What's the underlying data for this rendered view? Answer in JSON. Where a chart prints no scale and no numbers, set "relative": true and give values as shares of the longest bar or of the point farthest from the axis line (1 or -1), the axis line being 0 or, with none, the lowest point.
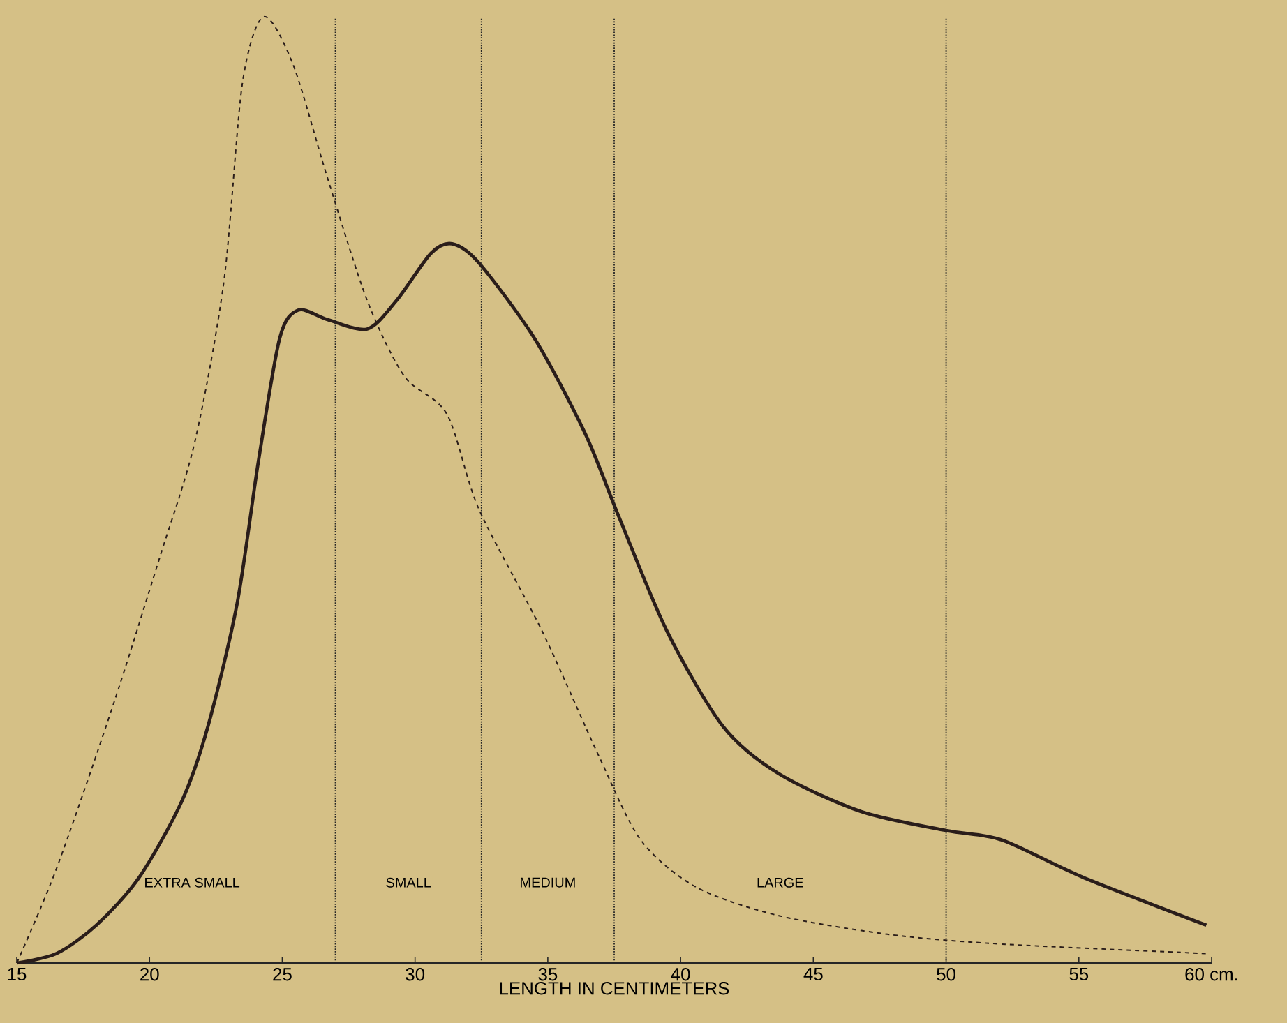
{
  "chart_data": {
    "type": "line",
    "relative": true,
    "xlabel": "LENGTH IN CENTIMETERS",
    "xlim": [
      15,
      60
    ],
    "xticks": [
      15,
      20,
      25,
      30,
      35,
      40,
      45,
      50,
      55,
      {
        "value": 60,
        "label": "60 cm."
      }
    ],
    "series": [
      {
        "color": "#2a1d1a",
        "line_style": "dashed",
        "x": [
          15,
          16.5,
          18.6,
          20.4,
          21.7,
          22.8,
          23.5,
          24.3,
          25.4,
          26.7,
          28.2,
          29.6,
          31.2,
          32.4,
          34.8,
          36.9,
          38.5,
          40.6,
          43.7,
          47.9,
          52.1,
          59.8
        ],
        "values": [
          0,
          0.1,
          0.27,
          0.43,
          0.55,
          0.72,
          0.93,
          1,
          0.95,
          0.83,
          0.7,
          0.62,
          0.58,
          0.48,
          0.35,
          0.22,
          0.13,
          0.08,
          0.05,
          0.03,
          0.02,
          0.01
        ]
      },
      {
        "color": "#2a1d1a",
        "line_style": "solid",
        "x": [
          15,
          16.5,
          18.0,
          19.6,
          21.2,
          22.2,
          23.3,
          24.1,
          24.9,
          25.6,
          26.7,
          28.2,
          29.3,
          30.6,
          31.4,
          32.4,
          34.5,
          36.4,
          37.7,
          39.5,
          41.6,
          43.7,
          46.8,
          50.0,
          52.1,
          55.2,
          59.8
        ],
        "values": [
          0,
          0.01,
          0.04,
          0.09,
          0.17,
          0.25,
          0.38,
          0.53,
          0.66,
          0.69,
          0.68,
          0.67,
          0.7,
          0.75,
          0.76,
          0.74,
          0.66,
          0.56,
          0.47,
          0.35,
          0.25,
          0.2,
          0.16,
          0.14,
          0.13,
          0.09,
          0.04
        ]
      }
    ],
    "ref_lines": [
      {
        "axis": "x",
        "value": 27,
        "line_style": "dotted"
      },
      {
        "axis": "x",
        "value": 32.5,
        "line_style": "dotted"
      },
      {
        "axis": "x",
        "value": 37.5,
        "line_style": "dotted"
      },
      {
        "axis": "x",
        "value": 50,
        "line_style": "dotted"
      }
    ],
    "annotations": [
      "EXTRA SMALL",
      "SMALL",
      "MEDIUM",
      "LARGE"
    ]
  }
}
